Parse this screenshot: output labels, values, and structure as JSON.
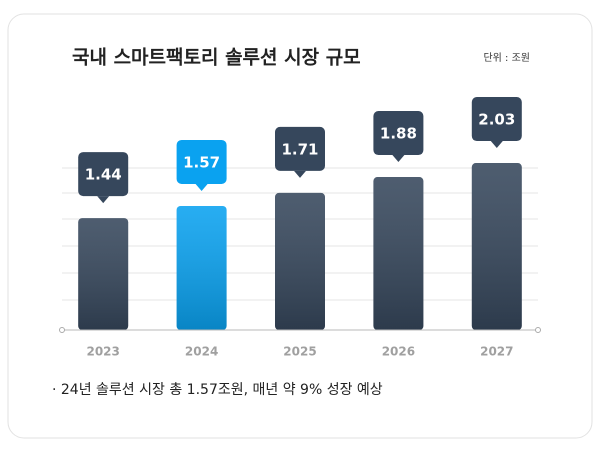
{
  "chart_data": {
    "type": "bar",
    "title": "국내 스마트팩토리 솔루션 시장 규모",
    "unit": "단위 : 조원",
    "categories": [
      "2023",
      "2024",
      "2025",
      "2026",
      "2027"
    ],
    "values": [
      1.44,
      1.57,
      1.71,
      1.88,
      2.03
    ],
    "colors": [
      "#36475c",
      "#0aa2f0",
      "#36475c",
      "#36475c",
      "#36475c"
    ],
    "ylim": [
      0.24,
      2.17
    ],
    "note": "· 24년 솔루션 시장 총 1.57조원, 매년 약 9% 성장 예상"
  }
}
